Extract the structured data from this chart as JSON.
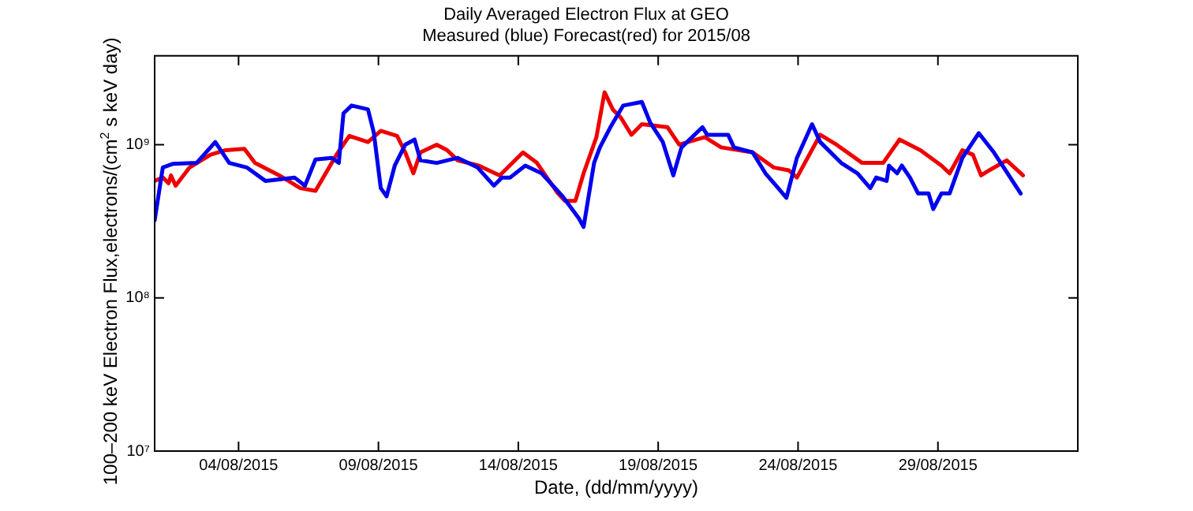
{
  "chart_data": {
    "type": "line",
    "title": "Daily Averaged Electron Flux at GEO",
    "subtitle": "Measured (blue) Forecast(red) for 2015/08",
    "xlabel": "Date, (dd/mm/yyyy)",
    "ylabel": "100–200 keV Electron Flux,electrons/(cm$^{2}$ s keV day)",
    "log": "y",
    "grid": false,
    "legend": false,
    "marker": "none",
    "line_style": "solid",
    "xlim": [
      "2015-08-01",
      "2015-09-03"
    ],
    "xticks": [
      {
        "value": "2015-08-04",
        "label": "04/08/2015"
      },
      {
        "value": "2015-08-09",
        "label": "09/08/2015"
      },
      {
        "value": "2015-08-14",
        "label": "14/08/2015"
      },
      {
        "value": "2015-08-19",
        "label": "19/08/2015"
      },
      {
        "value": "2015-08-24",
        "label": "24/08/2015"
      },
      {
        "value": "2015-08-29",
        "label": "29/08/2015"
      }
    ],
    "ylim": [
      10000000.0,
      3800000000.0
    ],
    "yticks": [
      {
        "value": 10000000.0,
        "label": "10⁷"
      },
      {
        "value": 100000000.0,
        "label": "10⁸"
      },
      {
        "value": 1000000000.0,
        "label": "10⁹"
      }
    ],
    "series": [
      {
        "color": "#0000ee",
        "x": [
          "2015-08-01T00:00",
          "2015-08-01T07:00",
          "2015-08-01T16:00",
          "2015-08-02T12:00",
          "2015-08-03T04:00",
          "2015-08-03T16:00",
          "2015-08-04T07:00",
          "2015-08-04T23:00",
          "2015-08-06T00:00",
          "2015-08-06T09:00",
          "2015-08-06T18:00",
          "2015-08-07T08:00",
          "2015-08-07T14:00",
          "2015-08-07T18:00",
          "2015-08-08T01:00",
          "2015-08-08T15:00",
          "2015-08-08T20:00",
          "2015-08-09T02:00",
          "2015-08-09T07:00",
          "2015-08-09T14:00",
          "2015-08-09T23:00",
          "2015-08-10T07:00",
          "2015-08-10T12:00",
          "2015-08-11T02:00",
          "2015-08-11T20:00",
          "2015-08-12T13:00",
          "2015-08-13T03:00",
          "2015-08-13T10:00",
          "2015-08-13T17:00",
          "2015-08-14T06:00",
          "2015-08-14T20:00",
          "2015-08-15T14:00",
          "2015-08-16T04:00",
          "2015-08-16T08:00",
          "2015-08-16T17:00",
          "2015-08-16T22:00",
          "2015-08-17T07:00",
          "2015-08-17T18:00",
          "2015-08-18T10:00",
          "2015-08-18T17:00",
          "2015-08-19T04:00",
          "2015-08-19T13:00",
          "2015-08-19T20:00",
          "2015-08-20T14:00",
          "2015-08-20T18:00",
          "2015-08-21T12:00",
          "2015-08-21T17:00",
          "2015-08-22T09:00",
          "2015-08-22T20:00",
          "2015-08-23T07:00",
          "2015-08-23T14:00",
          "2015-08-23T23:00",
          "2015-08-24T12:00",
          "2015-08-24T19:00",
          "2015-08-25T13:00",
          "2015-08-26T03:00",
          "2015-08-26T14:00",
          "2015-08-26T19:00",
          "2015-08-27T04:00",
          "2015-08-27T06:00",
          "2015-08-27T13:00",
          "2015-08-27T17:00",
          "2015-08-28T00:00",
          "2015-08-28T07:00",
          "2015-08-28T16:00",
          "2015-08-28T20:00",
          "2015-08-29T03:00",
          "2015-08-29T10:00",
          "2015-08-29T21:00",
          "2015-08-30T11:00",
          "2015-08-31T00:00",
          "2015-08-31T23:00"
        ],
        "values": [
          320000000.0,
          710000000.0,
          750000000.0,
          760000000.0,
          1040000000.0,
          760000000.0,
          710000000.0,
          580000000.0,
          610000000.0,
          540000000.0,
          800000000.0,
          820000000.0,
          760000000.0,
          1600000000.0,
          1800000000.0,
          1700000000.0,
          1200000000.0,
          520000000.0,
          460000000.0,
          730000000.0,
          1000000000.0,
          1080000000.0,
          790000000.0,
          760000000.0,
          820000000.0,
          710000000.0,
          540000000.0,
          610000000.0,
          610000000.0,
          730000000.0,
          650000000.0,
          460000000.0,
          330000000.0,
          290000000.0,
          760000000.0,
          960000000.0,
          1300000000.0,
          1800000000.0,
          1900000000.0,
          1400000000.0,
          1040000000.0,
          630000000.0,
          960000000.0,
          1300000000.0,
          1160000000.0,
          1160000000.0,
          960000000.0,
          890000000.0,
          650000000.0,
          520000000.0,
          450000000.0,
          820000000.0,
          1360000000.0,
          1040000000.0,
          760000000.0,
          650000000.0,
          520000000.0,
          610000000.0,
          580000000.0,
          730000000.0,
          650000000.0,
          730000000.0,
          610000000.0,
          480000000.0,
          480000000.0,
          380000000.0,
          480000000.0,
          480000000.0,
          820000000.0,
          1190000000.0,
          890000000.0,
          480000000.0
        ]
      },
      {
        "color": "#ee0000",
        "x": [
          "2015-08-01T00:00",
          "2015-08-01T07:00",
          "2015-08-01T12:00",
          "2015-08-01T14:00",
          "2015-08-01T18:00",
          "2015-08-02T06:00",
          "2015-08-03T00:00",
          "2015-08-03T13:00",
          "2015-08-04T05:00",
          "2015-08-04T14:00",
          "2015-08-05T11:00",
          "2015-08-06T05:00",
          "2015-08-06T18:00",
          "2015-08-07T12:00",
          "2015-08-07T23:00",
          "2015-08-08T15:00",
          "2015-08-09T02:00",
          "2015-08-09T16:00",
          "2015-08-09T23:00",
          "2015-08-10T06:00",
          "2015-08-10T12:00",
          "2015-08-11T02:00",
          "2015-08-11T11:00",
          "2015-08-11T20:00",
          "2015-08-12T14:00",
          "2015-08-13T08:00",
          "2015-08-14T04:00",
          "2015-08-14T16:00",
          "2015-08-15T10:00",
          "2015-08-15T16:00",
          "2015-08-16T01:00",
          "2015-08-16T08:00",
          "2015-08-16T19:00",
          "2015-08-17T02:00",
          "2015-08-17T09:00",
          "2015-08-17T16:00",
          "2015-08-18T01:00",
          "2015-08-18T10:00",
          "2015-08-19T08:00",
          "2015-08-19T18:00",
          "2015-08-20T16:00",
          "2015-08-21T06:00",
          "2015-08-22T09:00",
          "2015-08-23T03:00",
          "2015-08-23T16:00",
          "2015-08-23T23:00",
          "2015-08-24T19:00",
          "2015-08-25T09:00",
          "2015-08-26T07:00",
          "2015-08-27T01:00",
          "2015-08-27T15:00",
          "2015-08-28T09:00",
          "2015-08-29T03:00",
          "2015-08-29T10:00",
          "2015-08-29T21:00",
          "2015-08-30T06:00",
          "2015-08-30T13:00",
          "2015-08-30T20:00",
          "2015-08-31T11:00",
          "2015-09-01T01:00"
        ],
        "values": [
          580000000.0,
          610000000.0,
          560000000.0,
          630000000.0,
          540000000.0,
          710000000.0,
          860000000.0,
          920000000.0,
          940000000.0,
          760000000.0,
          630000000.0,
          520000000.0,
          500000000.0,
          860000000.0,
          1140000000.0,
          1040000000.0,
          1230000000.0,
          1140000000.0,
          890000000.0,
          650000000.0,
          890000000.0,
          1000000000.0,
          920000000.0,
          790000000.0,
          730000000.0,
          630000000.0,
          890000000.0,
          760000000.0,
          480000000.0,
          430000000.0,
          430000000.0,
          650000000.0,
          1120000000.0,
          2200000000.0,
          1700000000.0,
          1500000000.0,
          1160000000.0,
          1360000000.0,
          1300000000.0,
          1000000000.0,
          1120000000.0,
          960000000.0,
          890000000.0,
          710000000.0,
          680000000.0,
          610000000.0,
          1160000000.0,
          1000000000.0,
          760000000.0,
          760000000.0,
          1080000000.0,
          920000000.0,
          730000000.0,
          650000000.0,
          920000000.0,
          860000000.0,
          630000000.0,
          680000000.0,
          790000000.0,
          630000000.0
        ]
      }
    ]
  }
}
